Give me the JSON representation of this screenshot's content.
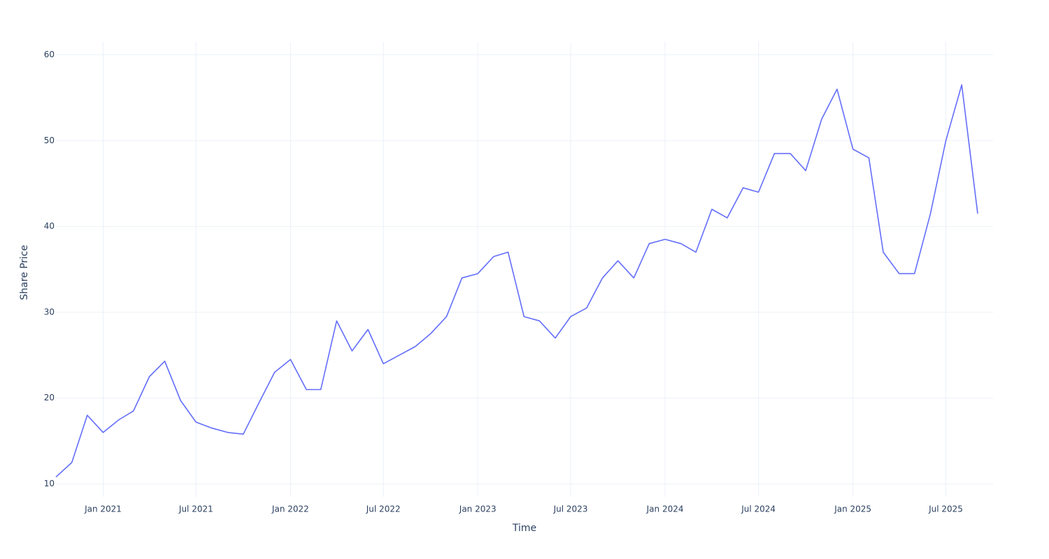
{
  "chart_data": {
    "type": "line",
    "x_label": "Time",
    "y_label": "Share Price",
    "color": "#636efa",
    "grid": true,
    "x": [
      "2020-10",
      "2020-11",
      "2020-12",
      "2021-01",
      "2021-02",
      "2021-03",
      "2021-04",
      "2021-05",
      "2021-06",
      "2021-07",
      "2021-08",
      "2021-09",
      "2021-10",
      "2021-11",
      "2021-12",
      "2022-01",
      "2022-02",
      "2022-03",
      "2022-04",
      "2022-05",
      "2022-06",
      "2022-07",
      "2022-08",
      "2022-09",
      "2022-10",
      "2022-11",
      "2022-12",
      "2023-01",
      "2023-02",
      "2023-03",
      "2023-04",
      "2023-05",
      "2023-06",
      "2023-07",
      "2023-08",
      "2023-09",
      "2023-10",
      "2023-11",
      "2023-12",
      "2024-01",
      "2024-02",
      "2024-03",
      "2024-04",
      "2024-05",
      "2024-06",
      "2024-07",
      "2024-08",
      "2024-09",
      "2024-10",
      "2024-11",
      "2024-12",
      "2025-01",
      "2025-02",
      "2025-03",
      "2025-04",
      "2025-05",
      "2025-06",
      "2025-07",
      "2025-08",
      "2025-09"
    ],
    "values": [
      10.8,
      12.5,
      18,
      16,
      17.5,
      18.5,
      22.5,
      24.3,
      19.7,
      17.2,
      16.5,
      16,
      15.8,
      19.5,
      23,
      24.5,
      21,
      21,
      29,
      25.5,
      28,
      24,
      25,
      26,
      27.5,
      29.5,
      34,
      34.5,
      36.5,
      37,
      29.5,
      29,
      27,
      29.5,
      30.5,
      34,
      36,
      34,
      38,
      38.5,
      38,
      37,
      42,
      41,
      44.5,
      44,
      48.5,
      48.5,
      46.5,
      52.5,
      56,
      49,
      48,
      37,
      34.5,
      34.5,
      41.5,
      50,
      56.5,
      41.5
    ],
    "xlim": [
      "2020-10",
      "2025-10"
    ],
    "xticks": [
      {
        "value": "2021-01",
        "label": "Jan 2021"
      },
      {
        "value": "2021-07",
        "label": "Jul 2021"
      },
      {
        "value": "2022-01",
        "label": "Jan 2022"
      },
      {
        "value": "2022-07",
        "label": "Jul 2022"
      },
      {
        "value": "2023-01",
        "label": "Jan 2023"
      },
      {
        "value": "2023-07",
        "label": "Jul 2023"
      },
      {
        "value": "2024-01",
        "label": "Jan 2024"
      },
      {
        "value": "2024-07",
        "label": "Jul 2024"
      },
      {
        "value": "2025-01",
        "label": "Jan 2025"
      },
      {
        "value": "2025-07",
        "label": "Jul 2025"
      }
    ],
    "ylim": [
      8.5,
      61.5
    ],
    "yticks": [
      10,
      20,
      30,
      40,
      50,
      60
    ]
  }
}
